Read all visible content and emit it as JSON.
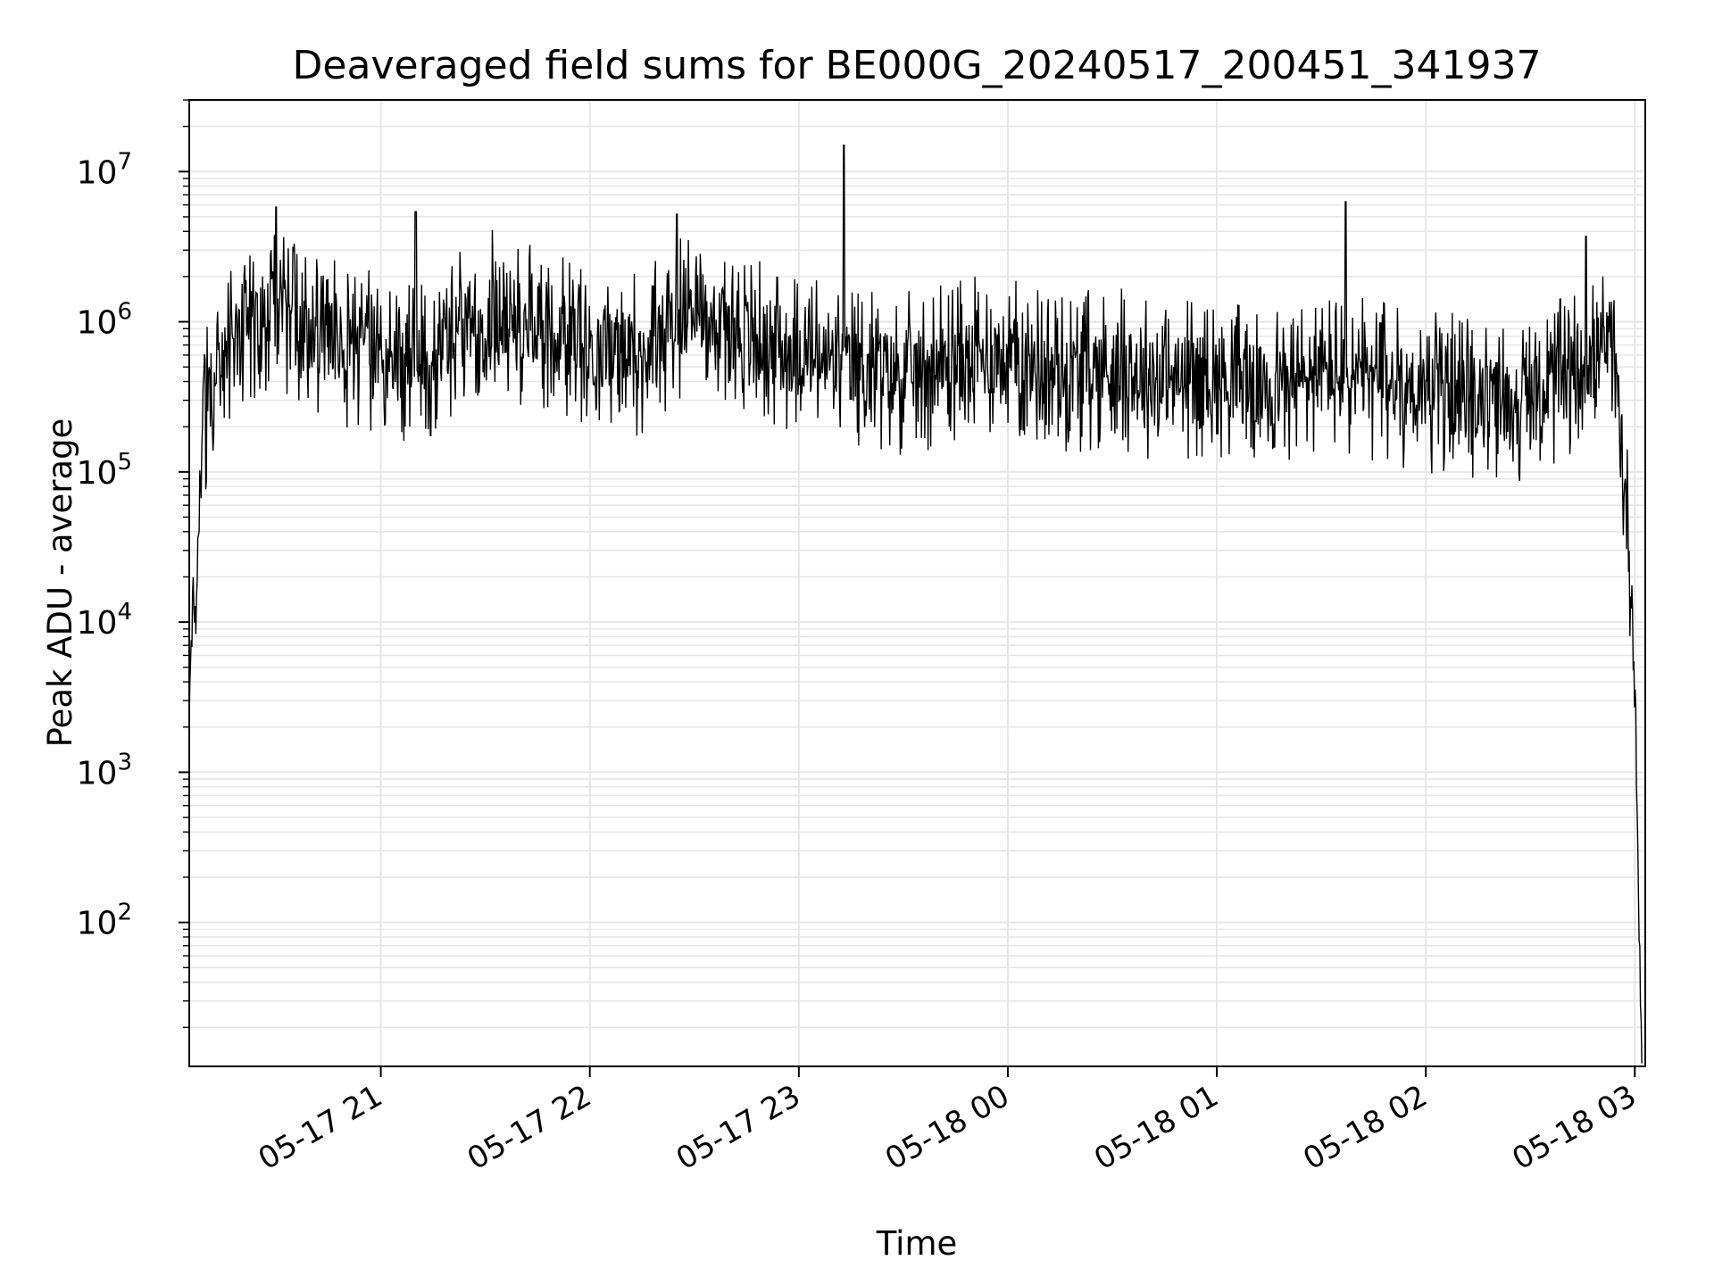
{
  "chart_data": {
    "type": "line",
    "title": "Deaveraged field sums for BE000G_20240517_200451_341937",
    "xlabel": "Time",
    "ylabel": "Peak ADU - average",
    "yscale": "log",
    "ylim": [
      11,
      30000000
    ],
    "xlim": [
      "2024-05-17 20:05",
      "2024-05-18 03:03"
    ],
    "grid": true,
    "xticks": [
      "05-17 21",
      "05-17 22",
      "05-17 23",
      "05-18 00",
      "05-18 01",
      "05-18 02",
      "05-18 03"
    ],
    "yticks": [
      {
        "base": "10",
        "exp": "2"
      },
      {
        "base": "10",
        "exp": "3"
      },
      {
        "base": "10",
        "exp": "4"
      },
      {
        "base": "10",
        "exp": "5"
      },
      {
        "base": "10",
        "exp": "6"
      },
      {
        "base": "10",
        "exp": "7"
      }
    ],
    "line_color": "#000000",
    "series": [
      {
        "x": [
          "2024-05-17 20:05",
          "2024-05-17 20:06",
          "2024-05-17 20:07",
          "2024-05-17 20:08",
          "2024-05-17 20:10",
          "2024-05-17 20:13",
          "2024-05-17 20:20",
          "2024-05-17 20:30",
          "2024-05-17 20:40",
          "2024-05-17 20:50",
          "2024-05-17 21:00",
          "2024-05-17 21:10",
          "2024-05-17 21:20",
          "2024-05-17 21:30",
          "2024-05-17 21:45",
          "2024-05-17 22:00",
          "2024-05-17 22:15",
          "2024-05-17 22:30",
          "2024-05-17 22:45",
          "2024-05-17 23:00",
          "2024-05-17 23:15",
          "2024-05-17 23:30",
          "2024-05-17 23:45",
          "2024-05-18 00:00",
          "2024-05-18 00:15",
          "2024-05-18 00:30",
          "2024-05-18 00:45",
          "2024-05-18 01:00",
          "2024-05-18 01:15",
          "2024-05-18 01:30",
          "2024-05-18 01:45",
          "2024-05-18 02:00",
          "2024-05-18 02:15",
          "2024-05-18 02:30",
          "2024-05-18 02:45",
          "2024-05-18 02:52",
          "2024-05-18 02:55",
          "2024-05-18 02:57",
          "2024-05-18 02:59",
          "2024-05-18 03:00",
          "2024-05-18 03:01",
          "2024-05-18 03:02"
        ],
        "values": [
          2000,
          20000,
          8000,
          100000,
          300000,
          500000,
          900000,
          1200000,
          800000,
          700000,
          600000,
          500000,
          800000,
          1200000,
          900000,
          700000,
          600000,
          1300000,
          800000,
          600000,
          500000,
          450000,
          550000,
          600000,
          450000,
          500000,
          400000,
          450000,
          350000,
          450000,
          400000,
          350000,
          300000,
          300000,
          500000,
          700000,
          300000,
          80000,
          20000,
          4000,
          200,
          10
        ],
        "spikes": [
          {
            "x": "2024-05-17 20:30",
            "value": 5800000
          },
          {
            "x": "2024-05-17 21:10",
            "value": 5400000
          },
          {
            "x": "2024-05-17 22:25",
            "value": 5200000
          },
          {
            "x": "2024-05-17 23:13",
            "value": 15000000
          },
          {
            "x": "2024-05-18 01:37",
            "value": 6300000
          },
          {
            "x": "2024-05-18 02:46",
            "value": 3700000
          }
        ]
      }
    ]
  }
}
